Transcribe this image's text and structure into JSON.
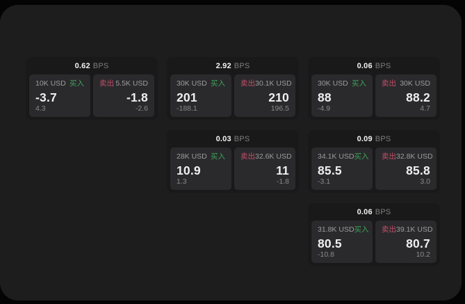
{
  "labels": {
    "bps_unit": "BPS",
    "buy": "买入",
    "sell": "卖出"
  },
  "colors": {
    "buy": "#3fa35a",
    "sell": "#c14f68",
    "surface": "#1d1d1e",
    "card": "#19191a",
    "panel": "#2a2a2c"
  },
  "cards": [
    {
      "bps": "0.62",
      "buy": {
        "amount": "10K USD",
        "price": "-3.7",
        "sub": "4.3"
      },
      "sell": {
        "amount": "5.5K USD",
        "price": "-1.8",
        "sub": "-2.6"
      }
    },
    {
      "bps": "2.92",
      "buy": {
        "amount": "30K USD",
        "price": "201",
        "sub": "-188.1"
      },
      "sell": {
        "amount": "30.1K USD",
        "price": "210",
        "sub": "196.5"
      }
    },
    {
      "bps": "0.06",
      "buy": {
        "amount": "30K USD",
        "price": "88",
        "sub": "-4.9"
      },
      "sell": {
        "amount": "30K USD",
        "price": "88.2",
        "sub": "4.7"
      }
    },
    {
      "bps": "0.03",
      "buy": {
        "amount": "28K USD",
        "price": "10.9",
        "sub": "1.3"
      },
      "sell": {
        "amount": "32.6K USD",
        "price": "11",
        "sub": "-1.8"
      }
    },
    {
      "bps": "0.09",
      "buy": {
        "amount": "34.1K USD",
        "price": "85.5",
        "sub": "-3.1"
      },
      "sell": {
        "amount": "32.8K USD",
        "price": "85.8",
        "sub": "3.0"
      }
    },
    {
      "bps": "0.06",
      "buy": {
        "amount": "31.8K USD",
        "price": "80.5",
        "sub": "-10.8"
      },
      "sell": {
        "amount": "39.1K USD",
        "price": "80.7",
        "sub": "10.2"
      }
    }
  ]
}
